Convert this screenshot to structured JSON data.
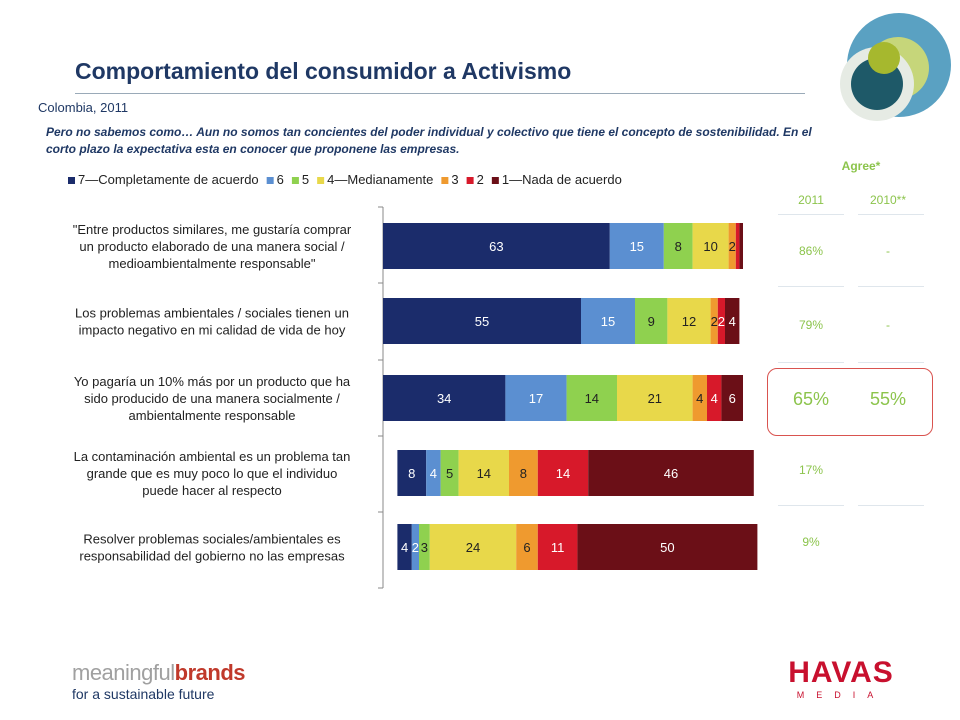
{
  "header": {
    "title": "Comportamiento del consumidor a Activismo",
    "subtitle": "Colombia, 2011",
    "note": "Pero no sabemos como… Aun no somos tan concientes del poder individual y colectivo que tiene el concepto de sostenibilidad. En el corto plazo la expectativa esta en conocer que proponene las empresas."
  },
  "agree": {
    "title": "Agree*",
    "years": [
      "2011",
      "2010**"
    ],
    "rows": [
      {
        "y2011": "86%",
        "y2010": "-"
      },
      {
        "y2011": "79%",
        "y2010": "-"
      },
      {
        "y2011": "65%",
        "y2010": "55%"
      },
      {
        "y2011": "17%",
        "y2010": ""
      },
      {
        "y2011": "9%",
        "y2010": ""
      }
    ],
    "highlight_color": "#d9534f",
    "text_color": "#8cc44c"
  },
  "chart_data": {
    "type": "bar",
    "orientation": "horizontal",
    "stacked": true,
    "legend_position": "top",
    "categories": [
      "\"Entre productos similares, me gustaría comprar un producto elaborado de una manera social / medioambientalmente responsable\"",
      "Los problemas ambientales / sociales tienen un impacto negativo en mi calidad de vida de hoy",
      "Yo pagaría un 10% más por un producto que ha sido producido de una manera socialmente / ambientalmente responsable",
      "La contaminación ambiental es un problema tan grande que es muy poco lo que el individuo puede hacer al respecto",
      "Resolver problemas sociales/ambientales es responsabilidad del gobierno no las empresas"
    ],
    "category_lines": [
      [
        "\"Entre productos similares, me gustaría comprar",
        "un producto elaborado de una manera social /",
        "medioambientalmente responsable\""
      ],
      [
        "Los problemas ambientales / sociales tienen un",
        "impacto negativo en mi calidad de vida de hoy"
      ],
      [
        "Yo pagaría un 10% más por un producto que ha",
        "sido producido de una manera socialmente /",
        "ambientalmente responsable"
      ],
      [
        "La contaminación ambiental es un problema tan",
        "grande que es muy poco lo que el individuo",
        "puede hacer al respecto"
      ],
      [
        "Resolver problemas sociales/ambientales es",
        "responsabilidad del gobierno no las empresas"
      ]
    ],
    "series": [
      {
        "name": "7—Completamente de acuerdo",
        "color": "#1b2c6b",
        "label_color": "#ffffff",
        "values": [
          63,
          55,
          34,
          8,
          4
        ]
      },
      {
        "name": "6",
        "color": "#5b8fd1",
        "label_color": "#ffffff",
        "values": [
          15,
          15,
          17,
          4,
          2
        ]
      },
      {
        "name": "5",
        "color": "#8fd14f",
        "label_color": "#222222",
        "values": [
          8,
          9,
          14,
          5,
          3
        ]
      },
      {
        "name": "4—Medianamente",
        "color": "#e8d84a",
        "label_color": "#222222",
        "values": [
          10,
          12,
          21,
          14,
          24
        ]
      },
      {
        "name": "3",
        "color": "#ef9a2f",
        "label_color": "#222222",
        "values": [
          2,
          2,
          4,
          8,
          6
        ]
      },
      {
        "name": "2",
        "color": "#d7192a",
        "label_color": "#ffffff",
        "values": [
          1,
          2,
          4,
          14,
          11
        ]
      },
      {
        "name": "1—Nada de acuerdo",
        "color": "#6b0f17",
        "label_color": "#ffffff",
        "values": [
          1,
          4,
          6,
          46,
          50
        ]
      }
    ],
    "data_labels": [
      [
        "63",
        "15",
        "8",
        "10",
        "2",
        "",
        ""
      ],
      [
        "55",
        "15",
        "9",
        "12",
        "2",
        "2",
        "4"
      ],
      [
        "34",
        "17",
        "14",
        "21",
        "4",
        "4",
        "6"
      ],
      [
        "8",
        "4",
        "5",
        "14",
        "8",
        "14",
        "46"
      ],
      [
        "4",
        "2",
        "3",
        "24",
        "6",
        "11",
        "50"
      ]
    ],
    "starts": [
      0,
      0,
      0,
      4,
      4
    ],
    "xlim": [
      0,
      100
    ]
  },
  "branding": {
    "left_main": "meaningful",
    "left_accent": "brands",
    "left_tagline": "for a sustainable future",
    "right_main": "HAVAS",
    "right_sub": "MEDIA"
  }
}
